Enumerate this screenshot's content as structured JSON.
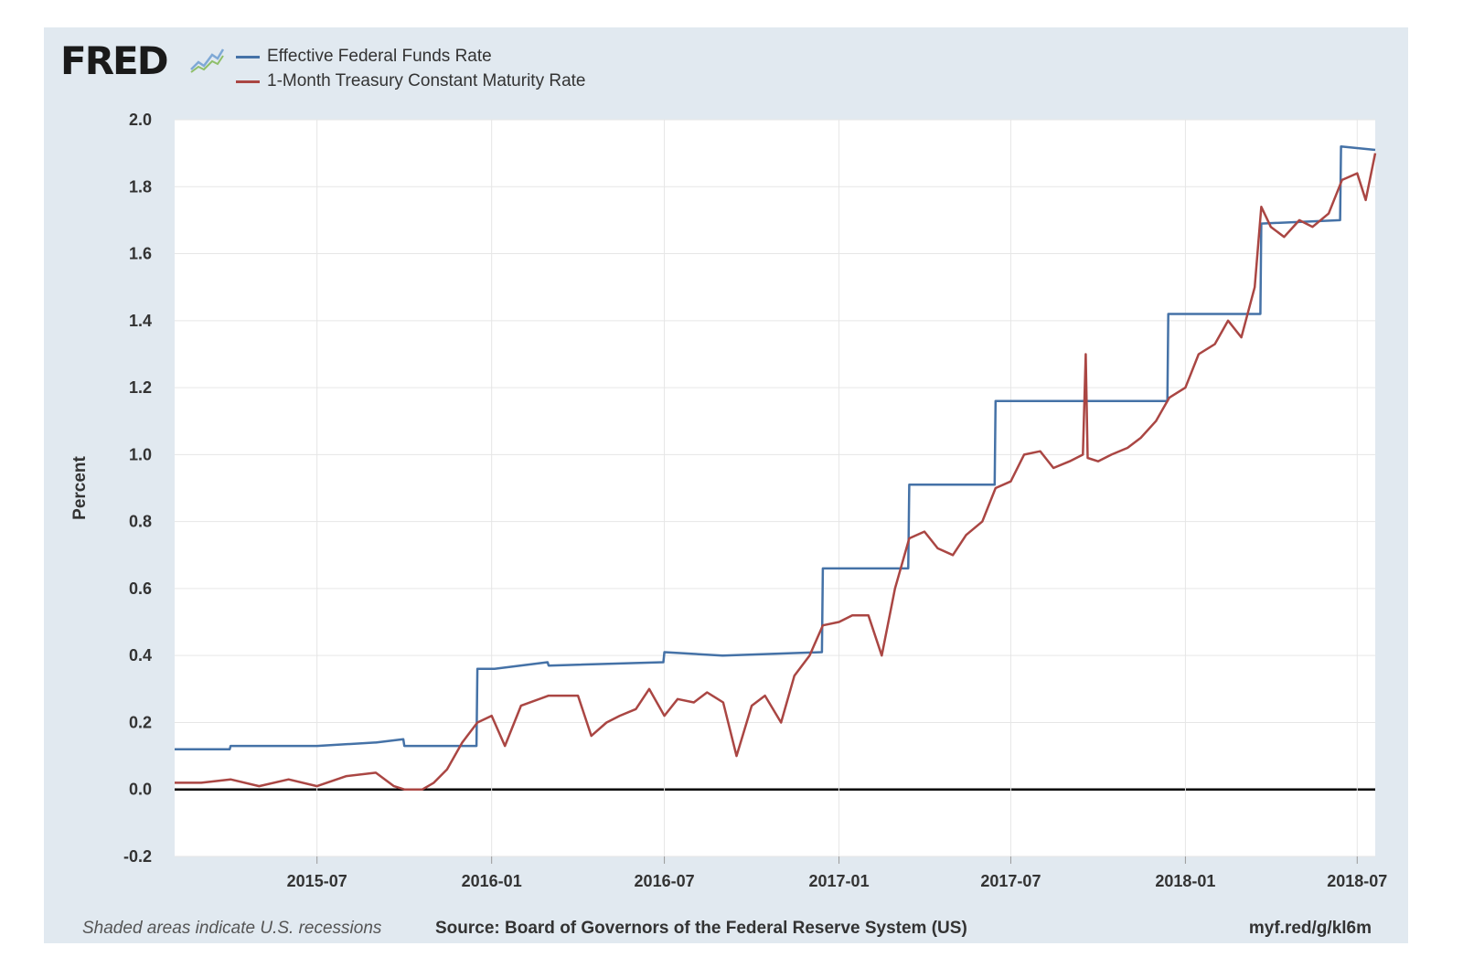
{
  "brand": {
    "logo_text": "FRED"
  },
  "footer": {
    "note": "Shaded areas indicate U.S. recessions",
    "source": "Source: Board of Governors of the Federal Reserve System (US)",
    "link": "myf.red/g/kl6m"
  },
  "colors": {
    "series_fed": "#4572a7",
    "series_tbill": "#aa4643",
    "frame": "#e1e9f0",
    "grid": "#e6e6e6"
  },
  "chart_data": {
    "type": "line",
    "title": "",
    "xlabel": "",
    "ylabel": "Percent",
    "ylim": [
      -0.2,
      2.0
    ],
    "xlim": [
      "2015-02-01",
      "2018-07-20"
    ],
    "y_ticks": [
      "2.0",
      "1.8",
      "1.6",
      "1.4",
      "1.2",
      "1.0",
      "0.8",
      "0.6",
      "0.4",
      "0.2",
      "0.0",
      "-0.2"
    ],
    "x_ticks": [
      {
        "date": "2015-07-01",
        "label": "2015-07"
      },
      {
        "date": "2016-01-01",
        "label": "2016-01"
      },
      {
        "date": "2016-07-01",
        "label": "2016-07"
      },
      {
        "date": "2017-01-01",
        "label": "2017-01"
      },
      {
        "date": "2017-07-01",
        "label": "2017-07"
      },
      {
        "date": "2018-01-01",
        "label": "2018-01"
      },
      {
        "date": "2018-07-01",
        "label": "2018-07"
      }
    ],
    "grid": true,
    "legend": "top-left",
    "series": [
      {
        "name": "Effective Federal Funds Rate",
        "x": [
          "2015-02-01",
          "2015-03-31",
          "2015-04-01",
          "2015-06-30",
          "2015-07-01",
          "2015-08-31",
          "2015-09-01",
          "2015-09-30",
          "2015-10-01",
          "2015-12-16",
          "2015-12-17",
          "2015-12-31",
          "2016-01-04",
          "2016-02-29",
          "2016-03-01",
          "2016-06-30",
          "2016-07-01",
          "2016-08-31",
          "2016-09-01",
          "2016-12-14",
          "2016-12-15",
          "2016-12-31",
          "2017-01-03",
          "2017-03-15",
          "2017-03-16",
          "2017-06-14",
          "2017-06-15",
          "2017-12-13",
          "2017-12-14",
          "2018-03-21",
          "2018-03-22",
          "2018-06-13",
          "2018-06-14",
          "2018-07-20"
        ],
        "y": [
          0.12,
          0.12,
          0.13,
          0.13,
          0.13,
          0.14,
          0.14,
          0.15,
          0.13,
          0.13,
          0.36,
          0.36,
          0.36,
          0.38,
          0.37,
          0.38,
          0.41,
          0.4,
          0.4,
          0.41,
          0.66,
          0.66,
          0.66,
          0.66,
          0.91,
          0.91,
          1.16,
          1.16,
          1.42,
          1.42,
          1.69,
          1.7,
          1.92,
          1.91
        ]
      },
      {
        "name": "1-Month Treasury Constant Maturity Rate",
        "x": [
          "2015-02-01",
          "2015-03-01",
          "2015-04-01",
          "2015-05-01",
          "2015-06-01",
          "2015-07-01",
          "2015-08-01",
          "2015-09-01",
          "2015-09-20",
          "2015-10-01",
          "2015-10-20",
          "2015-11-01",
          "2015-11-15",
          "2015-12-01",
          "2015-12-17",
          "2016-01-01",
          "2016-01-15",
          "2016-02-01",
          "2016-03-01",
          "2016-04-01",
          "2016-04-15",
          "2016-05-01",
          "2016-05-15",
          "2016-06-01",
          "2016-06-15",
          "2016-07-01",
          "2016-07-15",
          "2016-08-01",
          "2016-08-15",
          "2016-09-01",
          "2016-09-15",
          "2016-10-01",
          "2016-10-15",
          "2016-11-01",
          "2016-11-15",
          "2016-12-01",
          "2016-12-15",
          "2017-01-01",
          "2017-01-15",
          "2017-02-01",
          "2017-02-15",
          "2017-03-01",
          "2017-03-16",
          "2017-04-01",
          "2017-04-15",
          "2017-05-01",
          "2017-05-15",
          "2017-06-01",
          "2017-06-15",
          "2017-07-01",
          "2017-07-15",
          "2017-08-01",
          "2017-08-15",
          "2017-09-01",
          "2017-09-15",
          "2017-09-18",
          "2017-09-20",
          "2017-10-01",
          "2017-10-15",
          "2017-11-01",
          "2017-11-15",
          "2017-12-01",
          "2017-12-15",
          "2018-01-01",
          "2018-01-15",
          "2018-02-01",
          "2018-02-15",
          "2018-03-01",
          "2018-03-15",
          "2018-03-22",
          "2018-04-01",
          "2018-04-15",
          "2018-05-01",
          "2018-05-15",
          "2018-06-01",
          "2018-06-15",
          "2018-07-01",
          "2018-07-10",
          "2018-07-20"
        ],
        "y": [
          0.02,
          0.02,
          0.03,
          0.01,
          0.03,
          0.01,
          0.04,
          0.05,
          0.01,
          0.0,
          0.0,
          0.02,
          0.06,
          0.14,
          0.2,
          0.22,
          0.13,
          0.25,
          0.28,
          0.28,
          0.16,
          0.2,
          0.22,
          0.24,
          0.3,
          0.22,
          0.27,
          0.26,
          0.29,
          0.26,
          0.1,
          0.25,
          0.28,
          0.2,
          0.34,
          0.4,
          0.49,
          0.5,
          0.52,
          0.52,
          0.4,
          0.6,
          0.75,
          0.77,
          0.72,
          0.7,
          0.76,
          0.8,
          0.9,
          0.92,
          1.0,
          1.01,
          0.96,
          0.98,
          1.0,
          1.3,
          0.99,
          0.98,
          1.0,
          1.02,
          1.05,
          1.1,
          1.17,
          1.2,
          1.3,
          1.33,
          1.4,
          1.35,
          1.5,
          1.74,
          1.68,
          1.65,
          1.7,
          1.68,
          1.72,
          1.82,
          1.84,
          1.76,
          1.9
        ]
      }
    ]
  }
}
